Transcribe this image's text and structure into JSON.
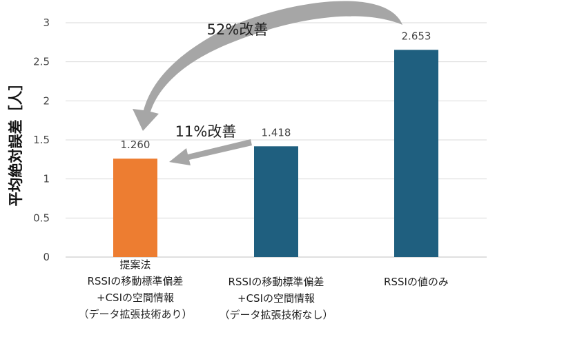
{
  "chart_data": {
    "type": "bar",
    "categories": [
      [
        "提案法",
        "RSSIの移動標準偏差",
        "+CSIの空間情報",
        "（データ拡張技術あり）"
      ],
      [
        "RSSIの移動標準偏差",
        "+CSIの空間情報",
        "（データ拡張技術なし）"
      ],
      [
        "RSSIの値のみ"
      ]
    ],
    "values": [
      1.26,
      1.418,
      2.653
    ],
    "data_labels": [
      "1.260",
      "1.418",
      "2.653"
    ],
    "bar_colors": [
      "#ed7d31",
      "#1f5f7f",
      "#1f5f7f"
    ],
    "title": "",
    "xlabel": "",
    "ylabel": "平均絶対誤差［人］",
    "ylim": [
      0,
      3
    ],
    "yticks": [
      0,
      0.5,
      1,
      1.5,
      2,
      2.5,
      3
    ],
    "ytick_labels": [
      "0",
      "0.5",
      "1",
      "1.5",
      "2",
      "2.5",
      "3"
    ],
    "grid": true,
    "legend": "none",
    "annotations": [
      {
        "text": "52%改善",
        "from_bar": 2,
        "to_bar": 0
      },
      {
        "text": "11%改善",
        "from_bar": 1,
        "to_bar": 0
      }
    ],
    "arrow_color": "#a6a6a6"
  }
}
